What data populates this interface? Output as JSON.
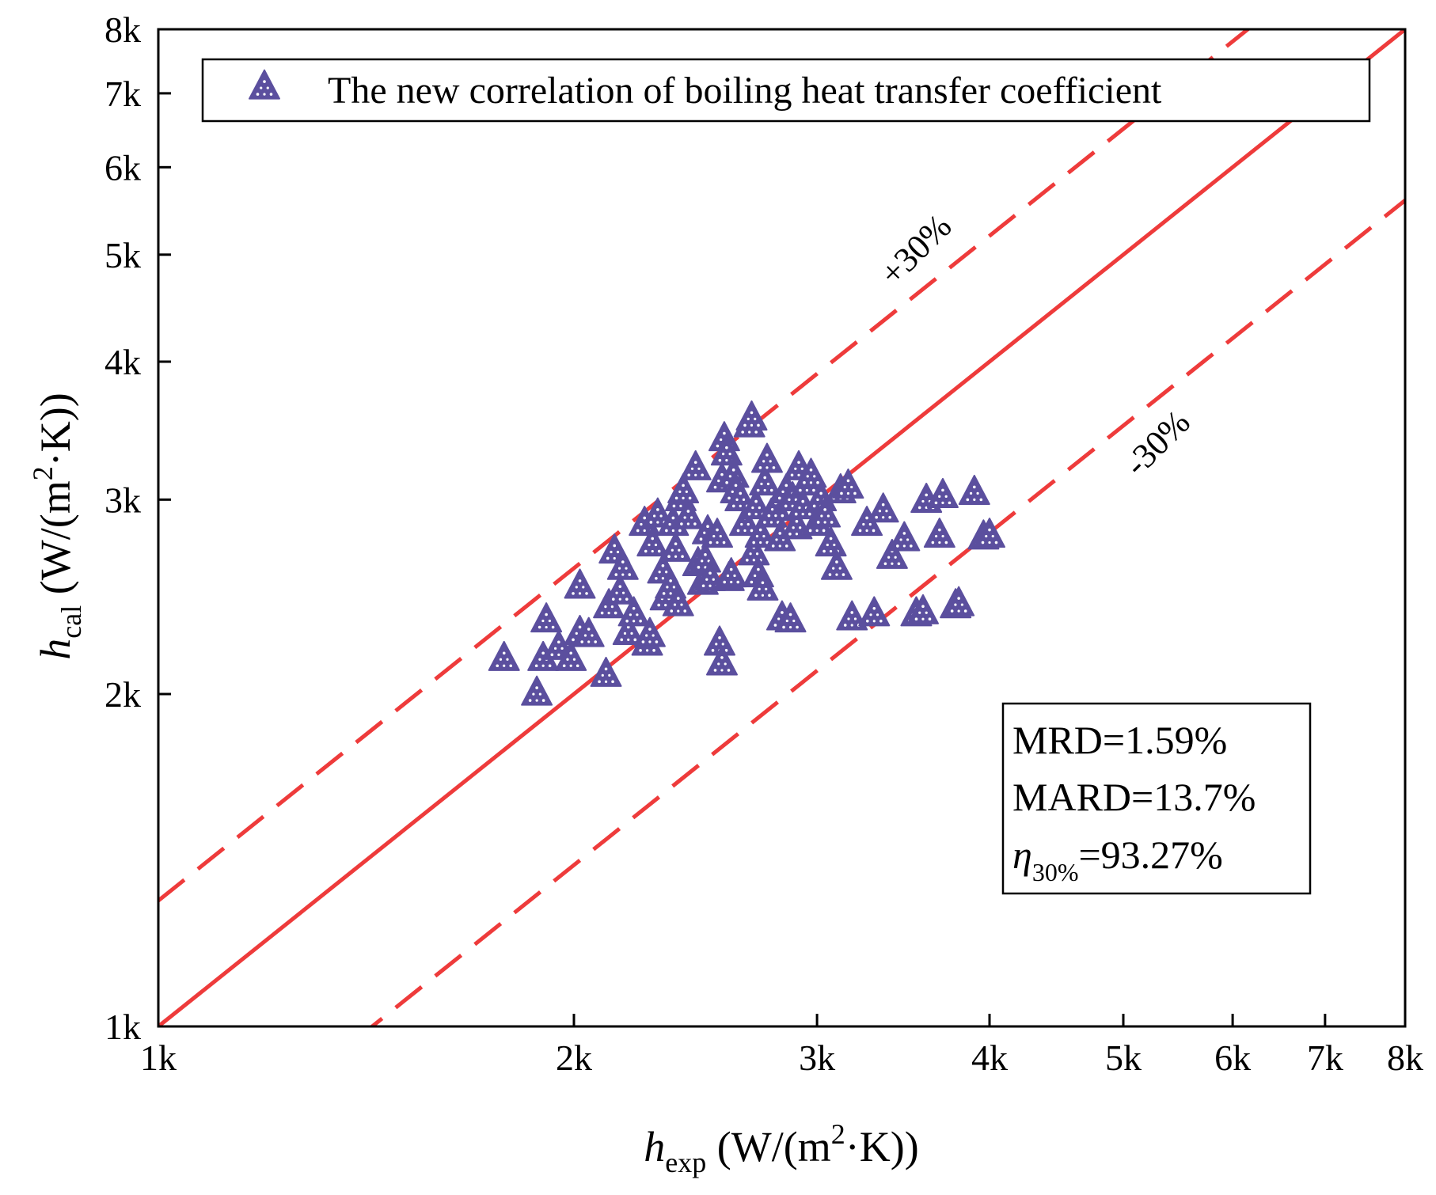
{
  "colors": {
    "marker_fill": "#5b4f9e",
    "marker_dot": "#ffffff",
    "reference_line": "#ee3b3b",
    "axis": "#000000"
  },
  "chart_data": {
    "type": "scatter",
    "scale": "log-log",
    "xlim": [
      1000,
      8000
    ],
    "ylim": [
      1000,
      8000
    ],
    "ticks": [
      1000,
      2000,
      3000,
      4000,
      5000,
      6000,
      7000,
      8000
    ],
    "tick_labels": [
      "1k",
      "2k",
      "3k",
      "4k",
      "5k",
      "6k",
      "7k",
      "8k"
    ],
    "xlabel": {
      "main": "h",
      "sub": "exp",
      "unit_pre": " (W/(m",
      "sup": "2",
      "unit_post": "·K))"
    },
    "ylabel": {
      "main": "h",
      "sub": "cal",
      "unit_pre": " (W/(m",
      "sup": "2",
      "unit_post": "·K))"
    },
    "legend": {
      "label": "The new correlation of boiling heat transfer coefficient",
      "marker": "triangle",
      "position": "top-left"
    },
    "reference_lines": [
      {
        "name": "parity",
        "factor": 1.0,
        "style": "solid",
        "label": ""
      },
      {
        "name": "plus30",
        "factor": 1.3,
        "style": "dashed",
        "label": "+30%"
      },
      {
        "name": "minus30",
        "factor": 0.7,
        "style": "dashed",
        "label": "-30%"
      }
    ],
    "stats": {
      "mrd": "MRD=1.59%",
      "mard": "MARD=13.7%",
      "eta_symbol": "η",
      "eta_sub": "30%",
      "eta_value": "=93.27%",
      "position": "bottom-right"
    },
    "series": [
      {
        "name": "The new correlation of boiling heat transfer coefficient",
        "points": [
          [
            1780,
            2150
          ],
          [
            1880,
            2000
          ],
          [
            1900,
            2150
          ],
          [
            1910,
            2330
          ],
          [
            1950,
            2200
          ],
          [
            1990,
            2150
          ],
          [
            2020,
            2500
          ],
          [
            2020,
            2270
          ],
          [
            2050,
            2260
          ],
          [
            2110,
            2080
          ],
          [
            2120,
            2400
          ],
          [
            2140,
            2690
          ],
          [
            2160,
            2470
          ],
          [
            2170,
            2600
          ],
          [
            2190,
            2270
          ],
          [
            2210,
            2360
          ],
          [
            2250,
            2850
          ],
          [
            2260,
            2220
          ],
          [
            2270,
            2260
          ],
          [
            2280,
            2730
          ],
          [
            2300,
            2900
          ],
          [
            2320,
            2580
          ],
          [
            2330,
            2440
          ],
          [
            2350,
            2500
          ],
          [
            2360,
            2850
          ],
          [
            2370,
            2700
          ],
          [
            2380,
            2410
          ],
          [
            2390,
            3000
          ],
          [
            2400,
            3050
          ],
          [
            2420,
            2890
          ],
          [
            2450,
            3200
          ],
          [
            2460,
            2620
          ],
          [
            2480,
            2520
          ],
          [
            2490,
            2640
          ],
          [
            2500,
            2800
          ],
          [
            2510,
            2540
          ],
          [
            2540,
            2780
          ],
          [
            2550,
            2220
          ],
          [
            2560,
            2130
          ],
          [
            2560,
            3120
          ],
          [
            2570,
            3400
          ],
          [
            2580,
            3300
          ],
          [
            2590,
            2540
          ],
          [
            2600,
            2560
          ],
          [
            2610,
            3150
          ],
          [
            2620,
            3050
          ],
          [
            2640,
            3000
          ],
          [
            2660,
            2850
          ],
          [
            2680,
            3500
          ],
          [
            2690,
            3550
          ],
          [
            2700,
            2680
          ],
          [
            2710,
            2950
          ],
          [
            2720,
            2560
          ],
          [
            2730,
            2780
          ],
          [
            2740,
            2490
          ],
          [
            2750,
            3100
          ],
          [
            2760,
            3250
          ],
          [
            2780,
            2900
          ],
          [
            2800,
            2940
          ],
          [
            2820,
            2760
          ],
          [
            2830,
            2340
          ],
          [
            2850,
            3050
          ],
          [
            2870,
            2330
          ],
          [
            2880,
            3000
          ],
          [
            2900,
            2830
          ],
          [
            2910,
            3200
          ],
          [
            2930,
            2950
          ],
          [
            2950,
            3100
          ],
          [
            2970,
            3150
          ],
          [
            3000,
            2850
          ],
          [
            3020,
            3000
          ],
          [
            3040,
            2900
          ],
          [
            3070,
            2730
          ],
          [
            3100,
            2600
          ],
          [
            3120,
            3050
          ],
          [
            3160,
            3080
          ],
          [
            3180,
            2340
          ],
          [
            3260,
            2850
          ],
          [
            3300,
            2360
          ],
          [
            3350,
            2930
          ],
          [
            3400,
            2660
          ],
          [
            3470,
            2760
          ],
          [
            3540,
            2360
          ],
          [
            3580,
            2370
          ],
          [
            3600,
            2990
          ],
          [
            3680,
            2780
          ],
          [
            3700,
            3020
          ],
          [
            3780,
            2400
          ],
          [
            3800,
            2410
          ],
          [
            3900,
            3040
          ],
          [
            3960,
            2770
          ],
          [
            4000,
            2780
          ]
        ]
      }
    ]
  }
}
